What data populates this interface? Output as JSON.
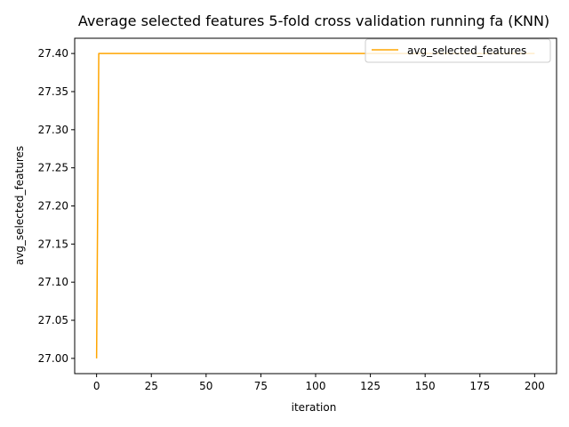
{
  "chart_data": {
    "type": "line",
    "title": "Average selected features 5-fold cross validation running fa (KNN)",
    "xlabel": "iteration",
    "ylabel": "avg_selected_features",
    "xlim": [
      -10,
      210
    ],
    "ylim": [
      26.98,
      27.42
    ],
    "xticks": [
      0,
      25,
      50,
      75,
      100,
      125,
      150,
      175,
      200
    ],
    "xtick_labels": [
      "0",
      "25",
      "50",
      "75",
      "100",
      "125",
      "150",
      "175",
      "200"
    ],
    "yticks": [
      27.0,
      27.05,
      27.1,
      27.15,
      27.2,
      27.25,
      27.3,
      27.35,
      27.4
    ],
    "ytick_labels": [
      "27.00",
      "27.05",
      "27.10",
      "27.15",
      "27.20",
      "27.25",
      "27.30",
      "27.35",
      "27.40"
    ],
    "grid": false,
    "legend_position": "top-right",
    "series": [
      {
        "name": "avg_selected_features",
        "color": "#ffa500",
        "x": [
          0,
          1,
          200
        ],
        "y": [
          27.0,
          27.4,
          27.4
        ]
      }
    ]
  }
}
